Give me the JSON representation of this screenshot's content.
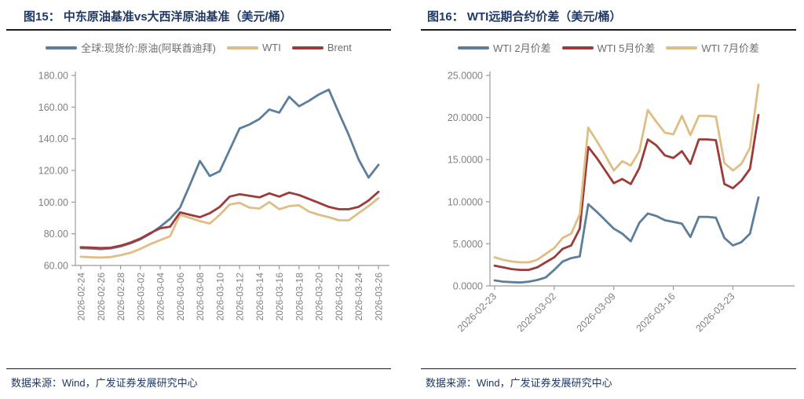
{
  "page": {
    "background": "#ffffff",
    "title_color": "#1F3864",
    "axis_text_color": "#808080"
  },
  "charts": [
    {
      "title": "图15： 中东原油基准vs大西洋原油基准（美元/桶）",
      "source": "数据来源：Wind，广发证券发展研究中心",
      "chart_data": {
        "type": "line",
        "title": "中东原油基准vs大西洋原油基准（美元/桶）",
        "xlabel": "",
        "ylabel": "",
        "ylim": [
          60,
          180
        ],
        "y_ticks": [
          "60.00",
          "80.00",
          "100.00",
          "120.00",
          "140.00",
          "160.00",
          "180.00"
        ],
        "grid": false,
        "legend_position": "top",
        "x_label_rotation": 90,
        "x_pad": [
          7,
          8
        ],
        "x_tick_indices": [
          0,
          2,
          4,
          6,
          8,
          10,
          12,
          14,
          16,
          18,
          20,
          22,
          24,
          26,
          28,
          30
        ],
        "x": [
          "2026-02-24",
          "2026-02-25",
          "2026-02-26",
          "2026-02-27",
          "2026-02-28",
          "2026-03-01",
          "2026-03-02",
          "2026-03-03",
          "2026-03-04",
          "2026-03-05",
          "2026-03-06",
          "2026-03-07",
          "2026-03-08",
          "2026-03-09",
          "2026-03-10",
          "2026-03-11",
          "2026-03-12",
          "2026-03-13",
          "2026-03-14",
          "2026-03-15",
          "2026-03-16",
          "2026-03-17",
          "2026-03-18",
          "2026-03-19",
          "2026-03-20",
          "2026-03-21",
          "2026-03-22",
          "2026-03-23",
          "2026-03-24",
          "2026-03-25",
          "2026-03-26"
        ],
        "series": [
          {
            "slug": "dubai-spot",
            "name": "全球:现货价:原油(阿联酋迪拜)",
            "color": "#5B7E9D",
            "values": [
              71.0,
              70.7,
              70.3,
              70.8,
              72.0,
              74.0,
              76.5,
              80.0,
              84.5,
              89.5,
              96.5,
              111.0,
              126.0,
              116.5,
              119.5,
              133.0,
              146.5,
              149.0,
              152.5,
              158.5,
              156.5,
              166.5,
              160.5,
              164.0,
              168.0,
              171.0,
              156.5,
              142.5,
              127.0,
              115.5,
              123.5
            ]
          },
          {
            "slug": "wti",
            "name": "WTI",
            "color": "#DFBE85",
            "values": [
              65.5,
              65.2,
              65.0,
              65.3,
              66.5,
              68.0,
              70.5,
              73.5,
              76.0,
              78.5,
              92.0,
              90.0,
              88.0,
              86.5,
              92.0,
              98.5,
              99.5,
              96.5,
              96.0,
              100.0,
              95.5,
              97.5,
              98.0,
              94.0,
              92.0,
              90.5,
              88.5,
              88.5,
              93.0,
              97.5,
              102.5
            ]
          },
          {
            "slug": "brent",
            "name": "Brent",
            "color": "#9C3B3A",
            "values": [
              71.5,
              71.3,
              71.0,
              71.2,
              72.5,
              74.5,
              77.0,
              80.5,
              83.5,
              84.5,
              93.5,
              92.0,
              90.5,
              93.0,
              97.0,
              103.5,
              105.0,
              104.0,
              103.0,
              105.5,
              103.5,
              106.0,
              104.5,
              102.0,
              99.5,
              97.0,
              95.5,
              95.5,
              97.0,
              101.0,
              106.5
            ]
          }
        ]
      }
    },
    {
      "title": "图16： WTI远期合约价差（美元/桶）",
      "source": "数据来源：Wind，广发证券发展研究中心",
      "chart_data": {
        "type": "line",
        "title": "WTI远期合约价差（美元/桶）",
        "xlabel": "",
        "ylabel": "",
        "ylim": [
          0,
          25
        ],
        "y_ticks": [
          "0.0000",
          "5.0000",
          "10.0000",
          "15.0000",
          "20.0000",
          "25.0000"
        ],
        "grid": false,
        "legend_position": "top",
        "x_label_rotation": 45,
        "x_pad": [
          6,
          34
        ],
        "x_tick_indices": [
          0,
          7,
          14,
          21,
          28
        ],
        "x": [
          "2026-02-23",
          "2026-02-24",
          "2026-02-25",
          "2026-02-26",
          "2026-02-27",
          "2026-02-28",
          "2026-03-01",
          "2026-03-02",
          "2026-03-03",
          "2026-03-04",
          "2026-03-05",
          "2026-03-06",
          "2026-03-07",
          "2026-03-08",
          "2026-03-09",
          "2026-03-10",
          "2026-03-11",
          "2026-03-12",
          "2026-03-13",
          "2026-03-14",
          "2026-03-15",
          "2026-03-16",
          "2026-03-17",
          "2026-03-18",
          "2026-03-19",
          "2026-03-20",
          "2026-03-21",
          "2026-03-22",
          "2026-03-23",
          "2026-03-24",
          "2026-03-25",
          "2026-03-26"
        ],
        "series": [
          {
            "slug": "wti-2m-spread",
            "name": "WTI 2月价差",
            "color": "#5B7E9D",
            "values": [
              0.65,
              0.5,
              0.45,
              0.4,
              0.5,
              0.7,
              1.0,
              1.9,
              2.9,
              3.3,
              3.5,
              9.7,
              8.8,
              7.8,
              6.8,
              6.2,
              5.3,
              7.5,
              8.6,
              8.3,
              7.8,
              7.6,
              7.4,
              5.8,
              8.2,
              8.2,
              8.1,
              5.7,
              4.8,
              5.2,
              6.2,
              10.5
            ]
          },
          {
            "slug": "wti-5m-spread",
            "name": "WTI 5月价差",
            "color": "#9C3B3A",
            "values": [
              2.4,
              2.2,
              2.0,
              1.9,
              1.9,
              2.2,
              2.8,
              3.4,
              4.4,
              4.8,
              6.8,
              16.5,
              15.2,
              13.7,
              12.2,
              12.7,
              12.1,
              14.0,
              17.4,
              16.7,
              15.5,
              15.2,
              16.0,
              14.5,
              17.4,
              17.4,
              17.3,
              12.1,
              11.6,
              12.5,
              13.9,
              20.3
            ]
          },
          {
            "slug": "wti-7m-spread",
            "name": "WTI 7月价差",
            "color": "#DFBE85",
            "values": [
              3.4,
              3.1,
              2.9,
              2.8,
              2.8,
              3.1,
              3.8,
              4.5,
              5.7,
              6.2,
              8.5,
              18.8,
              17.2,
              15.5,
              13.7,
              14.8,
              14.3,
              16.0,
              20.9,
              19.5,
              18.2,
              18.0,
              20.2,
              17.9,
              20.2,
              20.2,
              20.1,
              14.6,
              13.7,
              14.5,
              16.4,
              23.9
            ]
          }
        ]
      }
    }
  ]
}
